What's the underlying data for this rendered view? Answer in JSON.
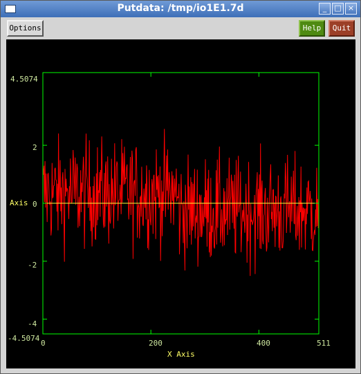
{
  "window": {
    "title": "Putdata: /tmp/io1E1.7d"
  },
  "toolbar": {
    "options_label": "Options",
    "help_label": "Help",
    "quit_label": "Quit"
  },
  "plot": {
    "y_label": "Axis",
    "x_label": "X Axis",
    "y_ticks": [
      "4.5074",
      "2",
      "0",
      "-2",
      "-4",
      "-4.5074"
    ],
    "x_ticks": [
      "0",
      "200",
      "400",
      "511"
    ],
    "colors": {
      "frame": "#00ff00",
      "series": "#ff0000",
      "zero_line": "#ffff33",
      "labels": "#ffff66"
    }
  },
  "chart_data": {
    "type": "line",
    "x_range": [
      0,
      511
    ],
    "y_range": [
      -4.5074,
      4.5074
    ],
    "series_description_points": 512,
    "y_zero_line": 0
  }
}
